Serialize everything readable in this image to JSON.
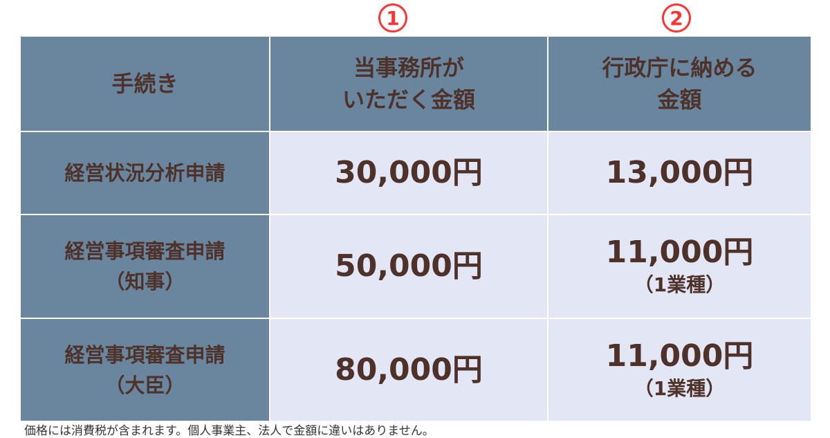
{
  "markers": [
    "1",
    "2"
  ],
  "header": {
    "col1": "手続き",
    "col2": [
      "当事務所が",
      "いただく金額"
    ],
    "col3": [
      "行政庁に納める",
      "金額"
    ]
  },
  "rows": [
    {
      "label": [
        "経営状況分析申請"
      ],
      "fee": "30,000円",
      "gov": "13,000円",
      "gov_note": ""
    },
    {
      "label": [
        "経営事項審査申請",
        "（知事）"
      ],
      "fee": "50,000円",
      "gov": "11,000円",
      "gov_note": "（1業種）"
    },
    {
      "label": [
        "経営事項審査申請",
        "（大臣）"
      ],
      "fee": "80,000円",
      "gov": "11,000円",
      "gov_note": "（1業種）"
    }
  ],
  "footnote": "価格には消費税が含まれます。個人事業主、法人で金額に違いはありません。",
  "colors": {
    "header": "#6a869f",
    "body": "#e3e6f5",
    "text": "#4e3129",
    "marker": "#ff3333"
  }
}
